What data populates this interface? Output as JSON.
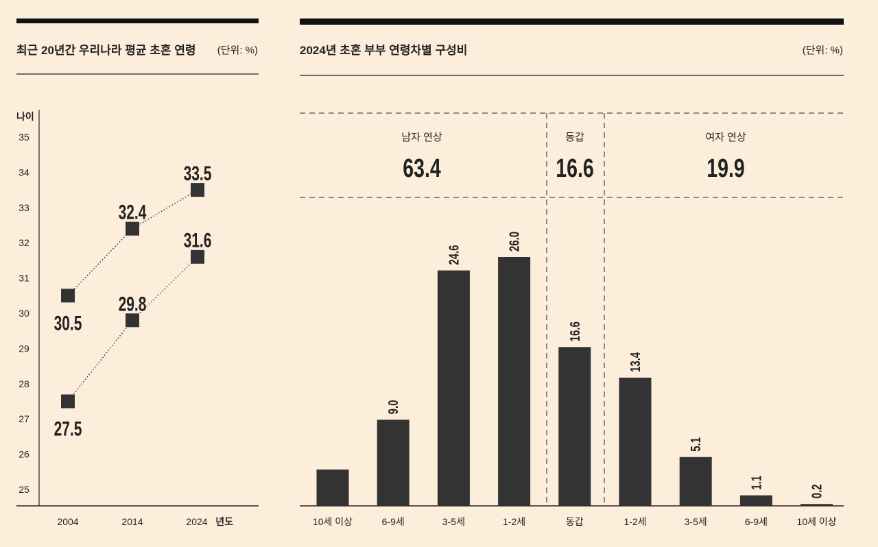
{
  "chart_data": [
    {
      "type": "line",
      "title": "최근 20년간 우리나라 평균 초혼 연령",
      "unit": "(단위: %)",
      "ylabel": "나이",
      "xlabel": "년도",
      "x": [
        "2004",
        "2014",
        "2024"
      ],
      "yticks": [
        "25",
        "26",
        "27",
        "28",
        "29",
        "30",
        "31",
        "32",
        "33",
        "34",
        "35"
      ],
      "ylim": [
        25,
        35
      ],
      "series": [
        {
          "values": [
            30.5,
            32.4,
            33.5
          ]
        },
        {
          "values": [
            27.5,
            29.8,
            31.6
          ]
        }
      ],
      "colors": {
        "marker": "#333333",
        "background": "#fdeedb"
      }
    },
    {
      "type": "bar",
      "title": "2024년 초혼 부부 연령차별 구성비",
      "unit": "(단위: %)",
      "groups": [
        {
          "label": "남자 연상",
          "total": "63.4"
        },
        {
          "label": "동갑",
          "total": "16.6"
        },
        {
          "label": "여자 연상",
          "total": "19.9"
        }
      ],
      "categories": [
        "10세 이상",
        "6-9세",
        "3-5세",
        "1-2세",
        "동갑",
        "1-2세",
        "3-5세",
        "6-9세",
        "10세 이상"
      ],
      "values": [
        3.8,
        9.0,
        24.6,
        26.0,
        16.6,
        13.4,
        5.1,
        1.1,
        0.2
      ],
      "labels": [
        "",
        "9.0",
        "24.6",
        "26.0",
        "16.6",
        "13.4",
        "5.1",
        "1.1",
        "0.2"
      ],
      "ylim": [
        0,
        26
      ],
      "colors": {
        "bar": "#333333"
      }
    }
  ]
}
